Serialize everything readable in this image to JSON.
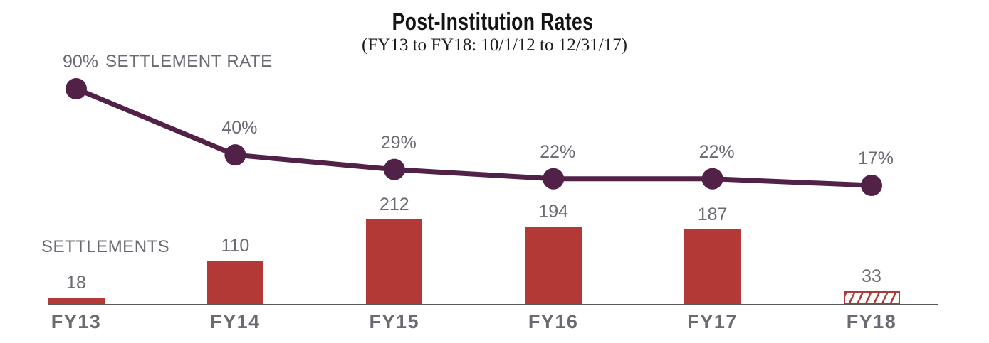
{
  "chart_data": {
    "type": "combo-line-bar",
    "title": "Post-Institution Rates",
    "subtitle": "(FY13 to FY18: 10/1/12 to 12/31/17)",
    "categories": [
      "FY13",
      "FY14",
      "FY15",
      "FY16",
      "FY17",
      "FY18"
    ],
    "series": [
      {
        "name": "SETTLEMENT RATE",
        "type": "line",
        "unit": "%",
        "values": [
          90,
          40,
          29,
          22,
          22,
          17
        ],
        "labels": [
          "90%",
          "40%",
          "29%",
          "22%",
          "22%",
          "17%"
        ],
        "color": "#512147",
        "marker": "filled-circle"
      },
      {
        "name": "SETTLEMENTS",
        "type": "bar",
        "values": [
          18,
          110,
          212,
          194,
          187,
          33
        ],
        "labels": [
          "18",
          "110",
          "212",
          "194",
          "187",
          "33"
        ],
        "color": "#b23936",
        "hatched_categories": [
          "FY18"
        ]
      }
    ],
    "text_color": "#6a6a72",
    "axis_color": "#59595b",
    "grid": false,
    "x_axis_line": true,
    "y_axes_visible": false,
    "legend_position": "inline-labels"
  }
}
